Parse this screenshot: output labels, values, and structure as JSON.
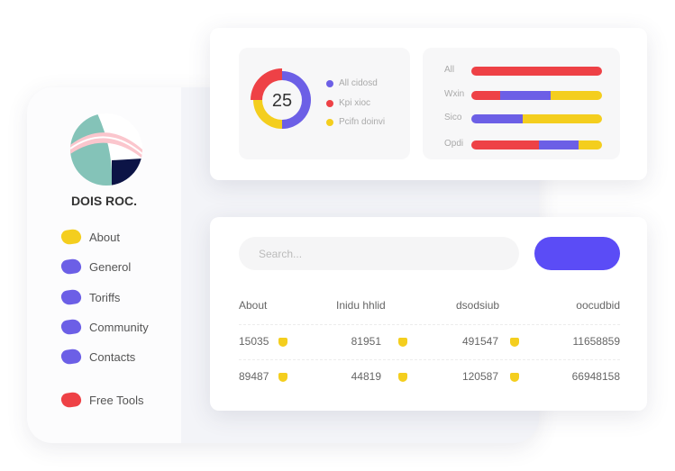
{
  "sidebar": {
    "brand": "DOIS ROC.",
    "items": [
      {
        "label": "About",
        "color": "#f4ce1e"
      },
      {
        "label": "Generol",
        "color": "#6c5fe6"
      },
      {
        "label": "Toriffs",
        "color": "#6c5fe6"
      },
      {
        "label": "Community",
        "color": "#6c5fe6"
      },
      {
        "label": "Contacts",
        "color": "#6c5fe6"
      },
      {
        "label": "Free Tools",
        "color": "#ee4146"
      }
    ]
  },
  "donut": {
    "value": "25",
    "segments": [
      {
        "label": "All cidosd",
        "color": "#6c5fe6",
        "fraction": 0.5
      },
      {
        "label": "Kpi xioc",
        "color": "#ee4146",
        "fraction": 0.25
      },
      {
        "label": "Pcifn doinvi",
        "color": "#f4ce1e",
        "fraction": 0.25
      }
    ]
  },
  "bars": [
    {
      "label": "All",
      "segments": [
        {
          "color": "#ee4146",
          "fraction": 1
        }
      ]
    },
    {
      "label": "Wxin",
      "segments": [
        {
          "color": "#ee4146",
          "fraction": 0.22
        },
        {
          "color": "#6c5fe6",
          "fraction": 0.39
        },
        {
          "color": "#f4ce1e",
          "fraction": 0.39
        }
      ]
    },
    {
      "label": "Sico",
      "segments": [
        {
          "color": "#6c5fe6",
          "fraction": 0.39
        },
        {
          "color": "#f4ce1e",
          "fraction": 0.61
        }
      ]
    },
    {
      "label": "Opdi",
      "segments": [
        {
          "color": "#ee4146",
          "fraction": 0.52
        },
        {
          "color": "#6c5fe6",
          "fraction": 0.3
        },
        {
          "color": "#f4ce1e",
          "fraction": 0.18
        }
      ]
    }
  ],
  "search": {
    "placeholder": "Search..."
  },
  "table": {
    "headers": [
      "About",
      "Inidu hhlid",
      "dsodsiub",
      "oocudbid"
    ],
    "rows": [
      [
        "15035",
        "81951",
        "491547",
        "11658859"
      ],
      [
        "89487",
        "44819",
        "120587",
        "66948158"
      ]
    ]
  }
}
